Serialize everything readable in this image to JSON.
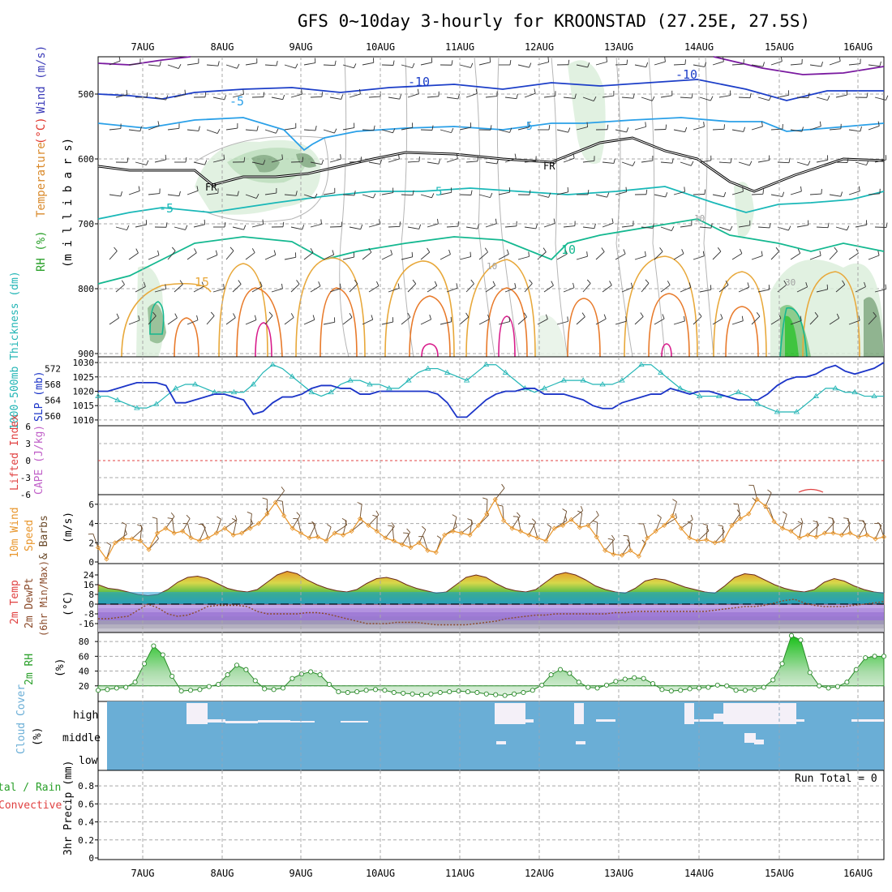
{
  "title": "GFS 0~10day 3-hourly for KROONSTAD (27.25E, 27.5S)",
  "dates": [
    "7AUG",
    "8AUG",
    "9AUG",
    "10AUG",
    "11AUG",
    "12AUG",
    "13AUG",
    "14AUG",
    "15AUG",
    "16AUG"
  ],
  "panels": {
    "upper": {
      "ylabel_parts": [
        {
          "text": "RH (%)",
          "color": "#2aa02a"
        },
        {
          "text": "Temperature",
          "color": "#d9892a"
        },
        {
          "text": "(°C)",
          "color": "#e0342a"
        },
        {
          "text": "Wind (m/s)",
          "color": "#3a3ab8"
        }
      ],
      "ylabel_units": "(m i l l i b a r s)",
      "ticks": [
        "500",
        "600",
        "700",
        "800",
        "900"
      ],
      "contour_labels": [
        "-10",
        "-10",
        "-5",
        "-5",
        "FR",
        "FR",
        "-5",
        "5",
        "10",
        "15",
        "10",
        "10",
        "30"
      ]
    },
    "thickness": {
      "ylabel_left": "1000-500mb Thickness (dm)",
      "ylabel_right": "SLP (mb)",
      "ticks_left": [
        "560",
        "564",
        "568",
        "572"
      ],
      "ticks_right": [
        "1010",
        "1015",
        "1020",
        "1025",
        "1030"
      ]
    },
    "stability": {
      "ylabel_left": "Lifted Index",
      "ylabel_right": "CAPE (J/kg)",
      "ticks": [
        "6",
        "3",
        "0",
        "-3",
        "-6"
      ]
    },
    "wind10m": {
      "ylabel": "10m Wind Speed & Barbs",
      "units": "(m/s)",
      "ticks": [
        "0",
        "2",
        "4",
        "6"
      ]
    },
    "temp2m": {
      "ylabel": "2m Temp 2m DewPt (6hr Min/Max)",
      "units": "(°C)",
      "ticks": [
        "24",
        "16",
        "8",
        "0",
        "-8",
        "-16"
      ]
    },
    "rh2m": {
      "ylabel": "2m RH",
      "units": "(%)",
      "ticks": [
        "20",
        "40",
        "60",
        "80"
      ]
    },
    "cloud": {
      "ylabel": "Cloud Cover",
      "units": "(%)",
      "levels": [
        "high",
        "middle",
        "low"
      ]
    },
    "precip": {
      "ylabel_total": "Total / Rain",
      "ylabel_conv": "Convective",
      "ylabel": "3hr Precip (mm)",
      "ticks": [
        "0",
        "0.2",
        "0.4",
        "0.6",
        "0.8"
      ],
      "run_total": "Run Total = 0"
    }
  },
  "colors": {
    "slp": "#1c35c8",
    "thickness": "#22b5b5",
    "wind": "#e8952a",
    "barb": "#6b4a2a",
    "rh_fill": "#3cc63c",
    "cloud": "#6aaed6",
    "temp_fill": "#e8c84a",
    "dewpt": "#8a4a2a"
  },
  "chart_data": [
    {
      "type": "line",
      "title": "1000-500mb Thickness / SLP",
      "x_unit": "3-hourly steps from 06 Aug 12Z",
      "series": [
        {
          "name": "SLP (mb)",
          "values": [
            1020,
            1020,
            1021,
            1022,
            1023,
            1023,
            1023,
            1022,
            1016,
            1016,
            1017,
            1018,
            1019,
            1019,
            1018,
            1017,
            1012,
            1013,
            1016,
            1018,
            1018,
            1019,
            1021,
            1022,
            1022,
            1021,
            1021,
            1019,
            1019,
            1020,
            1020,
            1020,
            1020,
            1020,
            1020,
            1019,
            1016,
            1011,
            1011,
            1014,
            1017,
            1019,
            1020,
            1020,
            1021,
            1021,
            1019,
            1019,
            1019,
            1018,
            1017,
            1015,
            1014,
            1014,
            1016,
            1017,
            1018,
            1019,
            1019,
            1021,
            1020,
            1019,
            1020,
            1020,
            1019,
            1018,
            1017,
            1017,
            1017,
            1019,
            1022,
            1024,
            1025,
            1025,
            1026,
            1028,
            1029,
            1027,
            1026,
            1027,
            1028,
            1030
          ]
        },
        {
          "name": "Thickness (dm)",
          "values": [
            565,
            565,
            564,
            563,
            562,
            562,
            563,
            565,
            567,
            568,
            568,
            567,
            566,
            566,
            566,
            566,
            568,
            571,
            573,
            572,
            570,
            568,
            566,
            565,
            566,
            568,
            569,
            569,
            568,
            568,
            567,
            567,
            569,
            571,
            572,
            572,
            571,
            570,
            569,
            571,
            573,
            573,
            571,
            569,
            567,
            566,
            567,
            568,
            569,
            569,
            569,
            568,
            568,
            568,
            569,
            571,
            573,
            573,
            571,
            569,
            567,
            566,
            565,
            565,
            565,
            565,
            566,
            565,
            563,
            562,
            561,
            561,
            561,
            563,
            565,
            567,
            567,
            566,
            566,
            565,
            565,
            565
          ]
        }
      ],
      "ylim_slp": [
        1010,
        1030
      ],
      "ylim_thickness": [
        560,
        574
      ]
    },
    {
      "type": "line",
      "title": "10m Wind Speed",
      "series": [
        {
          "name": "Speed (m/s)",
          "values": [
            1.5,
            0.3,
            2,
            2.4,
            2.4,
            2.2,
            1.3,
            3,
            3.5,
            3,
            3.2,
            2.5,
            2.2,
            2.5,
            3,
            3.5,
            2.8,
            3,
            3.5,
            4,
            5,
            6.2,
            4.8,
            3.5,
            3,
            2.5,
            2.6,
            2.2,
            3,
            2.8,
            3.2,
            4.5,
            3.8,
            3.2,
            2.5,
            2.2,
            1.8,
            1.5,
            2,
            1.2,
            1,
            2.8,
            3.2,
            3,
            2.8,
            3.8,
            5,
            6.5,
            4.3,
            3.5,
            3.2,
            2.8,
            2.5,
            2.2,
            3.5,
            3.8,
            4.4,
            3.6,
            3.8,
            2.6,
            1.2,
            0.8,
            0.7,
            1.2,
            0.6,
            2.5,
            3.2,
            3.8,
            4.8,
            3.5,
            2.5,
            2.2,
            2.3,
            2,
            2.2,
            3.8,
            4.5,
            5,
            6.5,
            5.8,
            4.2,
            3.5,
            3.2,
            2.5,
            2.8,
            2.6,
            3,
            3,
            2.8,
            3,
            2.6,
            2.8,
            2.4,
            2.6
          ]
        }
      ],
      "ylim": [
        0,
        7
      ]
    },
    {
      "type": "area",
      "title": "2m Temp / DewPt",
      "series": [
        {
          "name": "2m Temp",
          "values": [
            16,
            13,
            12,
            10,
            8,
            7,
            8,
            12,
            18,
            22,
            23,
            21,
            17,
            13,
            11,
            10,
            12,
            18,
            24,
            27,
            25,
            20,
            16,
            13,
            11,
            10,
            12,
            17,
            21,
            22,
            20,
            16,
            13,
            11,
            9,
            10,
            16,
            22,
            24,
            22,
            17,
            13,
            11,
            10,
            12,
            18,
            24,
            26,
            24,
            20,
            15,
            12,
            10,
            9,
            13,
            19,
            21,
            20,
            17,
            14,
            12,
            10,
            9,
            15,
            22,
            25,
            24,
            20,
            16,
            13,
            11,
            10,
            12,
            18,
            21,
            19,
            15,
            12,
            10,
            9
          ]
        },
        {
          "name": "2m DewPt",
          "values": [
            -12,
            -12,
            -11,
            -10,
            -5,
            0,
            -3,
            -8,
            -10,
            -9,
            -6,
            -2,
            -1,
            -1,
            -1,
            -2,
            -6,
            -8,
            -8,
            -8,
            -8,
            -7,
            -7,
            -8,
            -10,
            -12,
            -14,
            -16,
            -16,
            -16,
            -15,
            -15,
            -15,
            -16,
            -17,
            -17,
            -17,
            -17,
            -16,
            -15,
            -14,
            -12,
            -11,
            -10,
            -9,
            -9,
            -8,
            -8,
            -8,
            -8,
            -8,
            -8,
            -7,
            -7,
            -6,
            -6,
            -6,
            -6,
            -6,
            -6,
            -6,
            -6,
            -5,
            -4,
            -3,
            -2,
            -2,
            -1,
            1,
            3,
            4,
            1,
            -1,
            -2,
            -2,
            -2,
            -1,
            0,
            1,
            2
          ]
        }
      ],
      "ylim": [
        -24,
        30
      ]
    },
    {
      "type": "area",
      "title": "2m RH",
      "series": [
        {
          "name": "2m RH (%)",
          "values": [
            14,
            15,
            17,
            18,
            25,
            50,
            74,
            62,
            33,
            13,
            14,
            15,
            19,
            22,
            35,
            48,
            42,
            27,
            16,
            15,
            17,
            30,
            36,
            39,
            35,
            22,
            12,
            11,
            12,
            14,
            15,
            14,
            11,
            10,
            9,
            8,
            9,
            11,
            12,
            13,
            12,
            11,
            9,
            8,
            7,
            9,
            11,
            14,
            21,
            35,
            42,
            37,
            25,
            18,
            17,
            21,
            26,
            29,
            31,
            30,
            23,
            15,
            13,
            14,
            16,
            17,
            18,
            21,
            20,
            14,
            14,
            15,
            18,
            28,
            50,
            88,
            82,
            38,
            20,
            17,
            19,
            25,
            42,
            58,
            60,
            60
          ]
        }
      ],
      "ylim": [
        0,
        90
      ]
    },
    {
      "type": "heatmap",
      "title": "Cloud Cover",
      "rows": [
        "high",
        "middle",
        "low"
      ],
      "note": "Overcast (100%) blue throughout with clear gaps mainly in high cloud on 7AUG, 11AUG-12AUG, 14AUG-15AUG"
    },
    {
      "type": "bar",
      "title": "3hr Precip (mm)",
      "values": [],
      "ylim": [
        0,
        0.9
      ],
      "run_total": 0
    }
  ]
}
